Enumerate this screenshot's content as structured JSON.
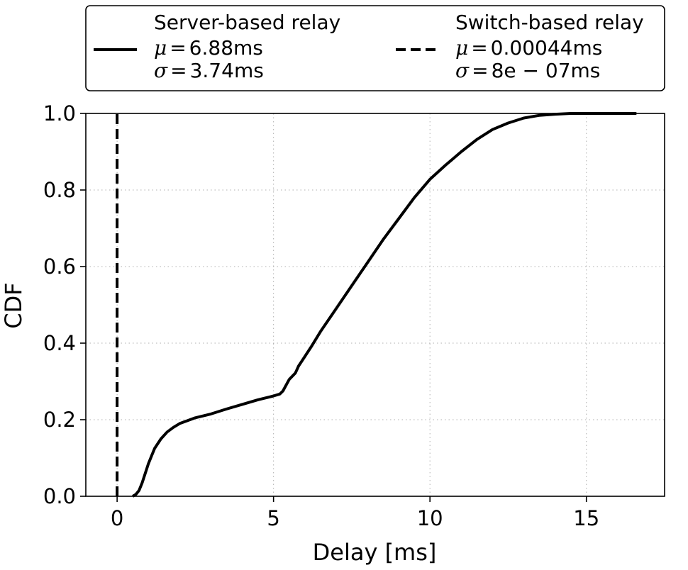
{
  "chart_data": {
    "type": "line",
    "xlabel": "Delay [ms]",
    "ylabel": "CDF",
    "xlim": [
      -1.0,
      17.5
    ],
    "ylim": [
      0.0,
      1.0
    ],
    "xticks": [
      0,
      5,
      10,
      15
    ],
    "yticks": [
      0.0,
      0.2,
      0.4,
      0.6,
      0.8,
      1.0
    ],
    "xtick_labels": [
      "0",
      "5",
      "10",
      "15"
    ],
    "ytick_labels": [
      "0.0",
      "0.2",
      "0.4",
      "0.6",
      "0.8",
      "1.0"
    ],
    "grid": true,
    "legend_position": "top",
    "series": [
      {
        "name": "Server-based relay",
        "style": "solid",
        "color": "#000000",
        "stats": {
          "mu": "6.88ms",
          "sigma": "3.74ms"
        },
        "x": [
          0.5,
          0.6,
          0.7,
          0.8,
          0.9,
          1.0,
          1.1,
          1.2,
          1.4,
          1.6,
          1.8,
          2.0,
          2.5,
          3.0,
          3.5,
          4.0,
          4.5,
          5.0,
          5.2,
          5.3,
          5.5,
          5.7,
          5.8,
          6.0,
          6.2,
          6.5,
          7.0,
          7.5,
          8.0,
          8.5,
          9.0,
          9.5,
          10.0,
          10.5,
          11.0,
          11.5,
          12.0,
          12.5,
          13.0,
          13.5,
          14.0,
          14.5,
          15.0,
          16.0,
          16.6
        ],
        "y": [
          0.0,
          0.005,
          0.015,
          0.035,
          0.06,
          0.085,
          0.105,
          0.125,
          0.15,
          0.168,
          0.18,
          0.19,
          0.205,
          0.215,
          0.228,
          0.24,
          0.252,
          0.262,
          0.267,
          0.275,
          0.305,
          0.322,
          0.34,
          0.365,
          0.39,
          0.43,
          0.49,
          0.55,
          0.61,
          0.67,
          0.725,
          0.78,
          0.828,
          0.865,
          0.9,
          0.932,
          0.958,
          0.975,
          0.988,
          0.995,
          0.998,
          1.0,
          1.0,
          1.0,
          1.0
        ]
      },
      {
        "name": "Switch-based relay",
        "style": "dashed",
        "color": "#000000",
        "stats": {
          "mu": "0.00044ms",
          "sigma": "8e − 07ms"
        },
        "x": [
          0.00044,
          0.00044
        ],
        "y": [
          0.0,
          1.0
        ]
      }
    ]
  },
  "legend": {
    "mu_symbol": "μ",
    "sigma_symbol": "σ",
    "equals": "="
  }
}
